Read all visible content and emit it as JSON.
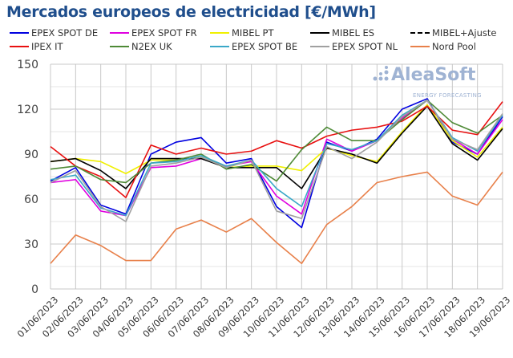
{
  "chart_data": {
    "type": "line",
    "title": "Mercados europeos de electricidad [€/MWh]",
    "xlabel": "",
    "ylabel": "",
    "ylim": [
      0,
      150
    ],
    "yticks": [
      0,
      30,
      60,
      90,
      120,
      150
    ],
    "grid": true,
    "legend_position": "top",
    "categories": [
      "01/06/2023",
      "02/06/2023",
      "03/06/2023",
      "04/06/2023",
      "05/06/2023",
      "06/06/2023",
      "07/06/2023",
      "08/06/2023",
      "09/06/2023",
      "10/06/2023",
      "11/06/2023",
      "12/06/2023",
      "13/06/2023",
      "14/06/2023",
      "15/06/2023",
      "16/06/2023",
      "17/06/2023",
      "18/06/2023",
      "19/06/2023"
    ],
    "series": [
      {
        "name": "EPEX SPOT DE",
        "color": "#0000e0",
        "dash": false,
        "values": [
          72,
          81,
          56,
          50,
          90,
          98,
          101,
          84,
          87,
          55,
          41,
          98,
          92,
          100,
          120,
          127,
          98,
          90,
          115
        ]
      },
      {
        "name": "EPEX SPOT FR",
        "color": "#e000e0",
        "dash": false,
        "values": [
          71,
          73,
          52,
          49,
          81,
          82,
          87,
          82,
          85,
          62,
          50,
          100,
          92,
          99,
          114,
          126,
          100,
          90,
          113
        ]
      },
      {
        "name": "MIBEL PT",
        "color": "#f0f000",
        "dash": false,
        "values": [
          85,
          87,
          85,
          77,
          86,
          86,
          88,
          81,
          82,
          82,
          79,
          94,
          89,
          85,
          105,
          123,
          99,
          88,
          108
        ]
      },
      {
        "name": "MIBEL ES",
        "color": "#000000",
        "dash": false,
        "values": [
          85,
          87,
          79,
          67,
          87,
          87,
          87,
          81,
          81,
          81,
          67,
          94,
          90,
          84,
          104,
          122,
          97,
          86,
          107
        ]
      },
      {
        "name": "MIBEL+Ajuste",
        "color": "#000000",
        "dash": true,
        "values": [
          85,
          87,
          79,
          67,
          87,
          87,
          87,
          81,
          81,
          81,
          67,
          94,
          90,
          84,
          104,
          122,
          97,
          86,
          107
        ]
      },
      {
        "name": "IPEX IT",
        "color": "#e81010",
        "dash": false,
        "values": [
          95,
          82,
          75,
          61,
          96,
          90,
          94,
          90,
          92,
          99,
          94,
          102,
          106,
          108,
          112,
          122,
          106,
          103,
          125
        ]
      },
      {
        "name": "N2EX UK",
        "color": "#4e8a36",
        "dash": false,
        "values": [
          80,
          82,
          73,
          71,
          84,
          86,
          90,
          80,
          83,
          72,
          93,
          108,
          99,
          99,
          113,
          126,
          111,
          104,
          116
        ]
      },
      {
        "name": "EPEX SPOT BE",
        "color": "#3aa8c8",
        "dash": false,
        "values": [
          73,
          76,
          54,
          49,
          84,
          85,
          89,
          82,
          86,
          67,
          55,
          97,
          93,
          99,
          116,
          126,
          101,
          92,
          116
        ]
      },
      {
        "name": "EPEX SPOT NL",
        "color": "#a0a0a0",
        "dash": false,
        "values": [
          71,
          79,
          55,
          45,
          82,
          84,
          88,
          81,
          86,
          52,
          47,
          95,
          87,
          98,
          115,
          126,
          100,
          93,
          117
        ]
      },
      {
        "name": "Nord Pool",
        "color": "#e8804a",
        "dash": false,
        "values": [
          17,
          36,
          29,
          19,
          19,
          40,
          46,
          38,
          47,
          31,
          17,
          43,
          55,
          71,
          75,
          78,
          62,
          56,
          78
        ]
      }
    ]
  },
  "watermark": {
    "brand": "AleaSoft",
    "tagline": "ENERGY FORECASTING"
  }
}
